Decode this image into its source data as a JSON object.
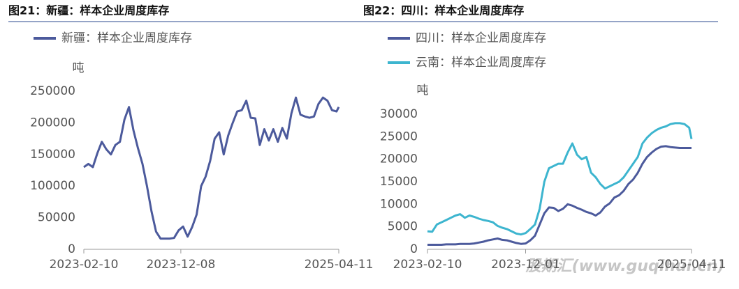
{
  "watermark": "股期汇(www.guqihui.cn)",
  "chart_data": [
    {
      "type": "line",
      "title": "图21：新疆：样本企业周度库存",
      "y_label": "吨",
      "x": [
        "2023-02-10",
        "2023-02-24",
        "2023-03-10",
        "2023-03-24",
        "2023-04-07",
        "2023-04-21",
        "2023-05-05",
        "2023-05-19",
        "2023-06-02",
        "2023-06-16",
        "2023-06-30",
        "2023-07-14",
        "2023-07-28",
        "2023-08-11",
        "2023-08-25",
        "2023-09-08",
        "2023-09-22",
        "2023-10-06",
        "2023-10-20",
        "2023-11-03",
        "2023-11-17",
        "2023-12-01",
        "2023-12-15",
        "2023-12-29",
        "2024-01-12",
        "2024-01-26",
        "2024-02-09",
        "2024-02-23",
        "2024-03-08",
        "2024-03-22",
        "2024-04-05",
        "2024-04-19",
        "2024-05-03",
        "2024-05-17",
        "2024-05-31",
        "2024-06-14",
        "2024-06-28",
        "2024-07-12",
        "2024-07-26",
        "2024-08-09",
        "2024-08-23",
        "2024-09-06",
        "2024-09-20",
        "2024-10-04",
        "2024-10-18",
        "2024-11-01",
        "2024-11-15",
        "2024-11-29",
        "2024-12-13",
        "2024-12-27",
        "2025-01-10",
        "2025-01-24",
        "2025-02-07",
        "2025-02-21",
        "2025-03-07",
        "2025-03-21",
        "2025-04-04",
        "2025-04-11"
      ],
      "series": [
        {
          "name": "新疆：样本企业周度库存",
          "color": "#4c5a9c",
          "values": [
            130000,
            135000,
            130000,
            152000,
            170000,
            158000,
            150000,
            165000,
            170000,
            205000,
            225000,
            188000,
            160000,
            135000,
            100000,
            60000,
            28000,
            17000,
            17000,
            17000,
            18000,
            30000,
            36000,
            20000,
            35000,
            55000,
            100000,
            115000,
            140000,
            175000,
            185000,
            150000,
            180000,
            200000,
            218000,
            220000,
            235000,
            208000,
            207000,
            165000,
            190000,
            172000,
            190000,
            170000,
            192000,
            175000,
            215000,
            240000,
            213000,
            210000,
            208000,
            210000,
            230000,
            240000,
            235000,
            220000,
            218000,
            225000
          ]
        }
      ],
      "xlim": [
        "2023-02-10",
        "2025-04-11"
      ],
      "xticks": [
        "2023-02-10",
        "2023-12-08",
        "2025-04-11"
      ],
      "ylim": [
        0,
        250000
      ],
      "yticks": [
        0,
        50000,
        100000,
        150000,
        200000,
        250000
      ],
      "legend": "top-left"
    },
    {
      "type": "line",
      "title": "图22：四川：样本企业周度库存",
      "y_label": "吨",
      "x": [
        "2023-02-10",
        "2023-02-24",
        "2023-03-10",
        "2023-03-24",
        "2023-04-07",
        "2023-04-21",
        "2023-05-05",
        "2023-05-19",
        "2023-06-02",
        "2023-06-16",
        "2023-06-30",
        "2023-07-14",
        "2023-07-28",
        "2023-08-11",
        "2023-08-25",
        "2023-09-08",
        "2023-09-22",
        "2023-10-06",
        "2023-10-20",
        "2023-11-03",
        "2023-11-17",
        "2023-12-01",
        "2023-12-15",
        "2023-12-29",
        "2024-01-12",
        "2024-01-26",
        "2024-02-09",
        "2024-02-23",
        "2024-03-08",
        "2024-03-22",
        "2024-04-05",
        "2024-04-19",
        "2024-05-03",
        "2024-05-17",
        "2024-05-31",
        "2024-06-14",
        "2024-06-28",
        "2024-07-12",
        "2024-07-26",
        "2024-08-09",
        "2024-08-23",
        "2024-09-06",
        "2024-09-20",
        "2024-10-04",
        "2024-10-18",
        "2024-11-01",
        "2024-11-15",
        "2024-11-29",
        "2024-12-13",
        "2024-12-27",
        "2025-01-10",
        "2025-01-24",
        "2025-02-07",
        "2025-02-21",
        "2025-03-07",
        "2025-03-21",
        "2025-04-04",
        "2025-04-11"
      ],
      "series": [
        {
          "name": "四川：样本企业周度库存",
          "color": "#4c5a9c",
          "values": [
            1000,
            1000,
            1000,
            1000,
            1100,
            1100,
            1100,
            1200,
            1200,
            1200,
            1300,
            1500,
            1700,
            2000,
            2200,
            2400,
            2100,
            2000,
            1700,
            1400,
            1200,
            1300,
            2000,
            3000,
            5500,
            8000,
            9300,
            9200,
            8500,
            9000,
            10000,
            9700,
            9200,
            8800,
            8300,
            8000,
            7500,
            8200,
            9500,
            10200,
            11500,
            12000,
            13000,
            14500,
            15500,
            17000,
            19000,
            20500,
            21500,
            22300,
            22800,
            22900,
            22700,
            22600,
            22500,
            22500,
            22500,
            22500
          ]
        },
        {
          "name": "云南：样本企业周度库存",
          "color": "#3db5cf",
          "values": [
            4000,
            3900,
            5500,
            6000,
            6500,
            7000,
            7500,
            7800,
            7000,
            7500,
            7200,
            6800,
            6500,
            6300,
            6000,
            5200,
            4800,
            4500,
            4000,
            3500,
            3300,
            3600,
            4500,
            5500,
            9000,
            15000,
            18000,
            18500,
            19000,
            19000,
            21500,
            23500,
            21000,
            20000,
            20500,
            17000,
            16000,
            14500,
            13500,
            14000,
            14500,
            15000,
            16000,
            17500,
            19000,
            20500,
            23500,
            24800,
            25800,
            26500,
            27000,
            27300,
            27800,
            28000,
            28000,
            27800,
            27000,
            24500
          ]
        }
      ],
      "xlim": [
        "2023-02-10",
        "2025-04-11"
      ],
      "xticks": [
        "2023-02-10",
        "2023-12-01",
        "2025-04-11"
      ],
      "ylim": [
        0,
        30000
      ],
      "yticks": [
        0,
        5000,
        10000,
        15000,
        20000,
        25000,
        30000
      ],
      "legend": "top-left"
    }
  ]
}
